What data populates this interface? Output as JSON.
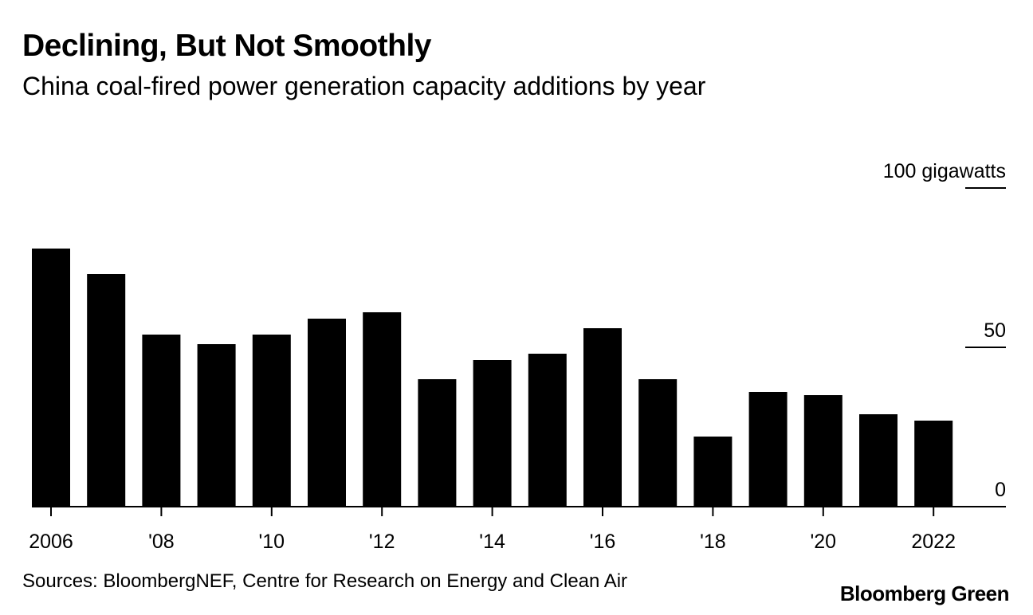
{
  "title": "Declining, But Not Smoothly",
  "subtitle": "China coal-fired power generation capacity additions by year",
  "source": "Sources: BloombergNEF, Centre for Research on Energy and Clean Air",
  "brand": "Bloomberg Green",
  "colors": {
    "bar": "#000000",
    "text": "#000000",
    "background": "#ffffff"
  },
  "chart_data": {
    "type": "bar",
    "title": "Declining, But Not Smoothly",
    "subtitle": "China coal-fired power generation capacity additions by year",
    "xlabel": "",
    "ylabel": "gigawatts",
    "ylim": [
      0,
      100
    ],
    "categories": [
      "2006",
      "2007",
      "2008",
      "2009",
      "2010",
      "2011",
      "2012",
      "2013",
      "2014",
      "2015",
      "2016",
      "2017",
      "2018",
      "2019",
      "2020",
      "2021",
      "2022"
    ],
    "values": [
      81,
      73,
      54,
      51,
      54,
      59,
      61,
      40,
      46,
      48,
      56,
      40,
      22,
      36,
      35,
      29,
      27
    ],
    "x_tick_labels": [
      {
        "category": "2006",
        "label": "2006"
      },
      {
        "category": "2008",
        "label": "'08"
      },
      {
        "category": "2010",
        "label": "'10"
      },
      {
        "category": "2012",
        "label": "'12"
      },
      {
        "category": "2014",
        "label": "'14"
      },
      {
        "category": "2016",
        "label": "'16"
      },
      {
        "category": "2018",
        "label": "'18"
      },
      {
        "category": "2020",
        "label": "'20"
      },
      {
        "category": "2022",
        "label": "2022"
      }
    ],
    "y_ticks": [
      {
        "value": 100,
        "label": "100 gigawatts"
      },
      {
        "value": 50,
        "label": "50"
      },
      {
        "value": 0,
        "label": "0"
      }
    ],
    "grid": false,
    "legend": "none"
  }
}
